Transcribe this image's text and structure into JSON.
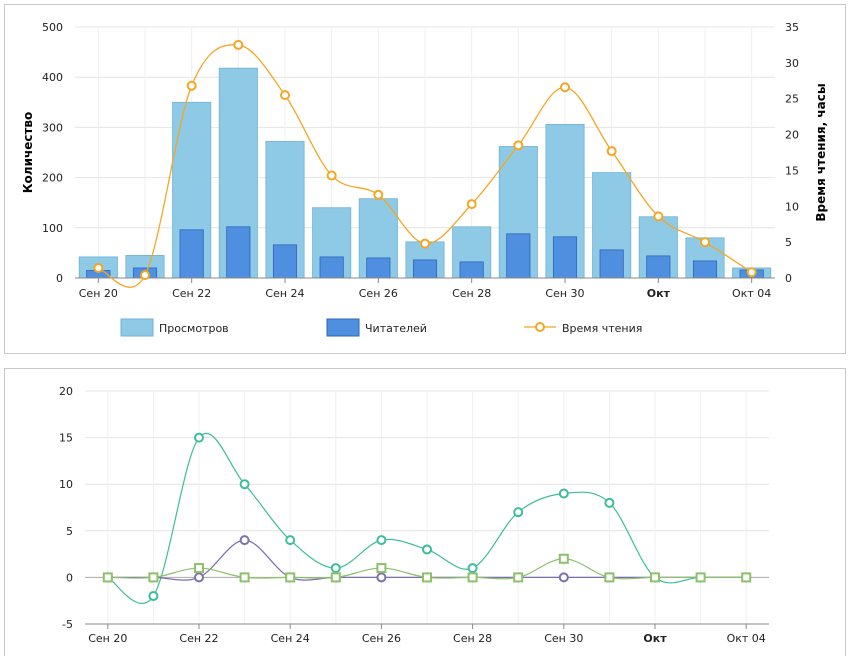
{
  "chart_data": [
    {
      "type": "bar",
      "x_tick_labels": [
        "Сен 20",
        "Сен 22",
        "Сен 24",
        "Сен 26",
        "Сен 28",
        "Сен 30",
        "Окт",
        "Окт 04"
      ],
      "x_tick_bold": [
        false,
        false,
        false,
        false,
        false,
        false,
        true,
        false
      ],
      "ylabel": "Количество",
      "y2label": "Время чтения, часы",
      "ylim": [
        0,
        500
      ],
      "y2lim": [
        0,
        35
      ],
      "yticks": [
        0,
        100,
        200,
        300,
        400,
        500
      ],
      "y2ticks": [
        0,
        5,
        10,
        15,
        20,
        25,
        30,
        35
      ],
      "series": [
        {
          "name": "Просмотров",
          "kind": "bar",
          "axis": "left",
          "color": "#8ecae6",
          "values": [
            42,
            45,
            350,
            418,
            272,
            140,
            158,
            72,
            102,
            262,
            306,
            210,
            122,
            80,
            20
          ]
        },
        {
          "name": "Читателей",
          "kind": "bar",
          "axis": "left",
          "color": "#4f8fe0",
          "values": [
            15,
            20,
            96,
            102,
            66,
            42,
            40,
            36,
            32,
            88,
            82,
            56,
            44,
            34,
            16
          ]
        },
        {
          "name": "Время чтения",
          "kind": "line",
          "axis": "right",
          "color": "#f5a623",
          "values": [
            1.4,
            0.4,
            26.8,
            32.5,
            25.5,
            14.3,
            11.6,
            4.8,
            10.3,
            18.5,
            26.6,
            17.7,
            8.6,
            5.0,
            0.8
          ]
        }
      ],
      "legend_placement": "bottom",
      "grid": true
    },
    {
      "type": "line",
      "x_tick_labels": [
        "Сен 20",
        "Сен 22",
        "Сен 24",
        "Сен 26",
        "Сен 28",
        "Сен 30",
        "Окт",
        "Окт 04"
      ],
      "x_tick_bold": [
        false,
        false,
        false,
        false,
        false,
        false,
        true,
        false
      ],
      "ylim": [
        -5,
        20
      ],
      "yticks": [
        -5,
        0,
        5,
        10,
        15,
        20
      ],
      "series": [
        {
          "color": "#3dbd9a",
          "marker": "circle",
          "values": [
            0,
            -2,
            15,
            10,
            4,
            1,
            4,
            3,
            1,
            7,
            9,
            8,
            0,
            0,
            0
          ]
        },
        {
          "color": "#7b6fb0",
          "marker": "circle",
          "values": [
            0,
            0,
            0,
            4,
            0,
            0,
            0,
            0,
            0,
            0,
            0,
            0,
            0,
            0,
            0
          ]
        },
        {
          "color": "#8cc06a",
          "marker": "square",
          "values": [
            0,
            0,
            1,
            0,
            0,
            0,
            1,
            0,
            0,
            0,
            2,
            0,
            0,
            0,
            0
          ]
        }
      ],
      "grid": true
    }
  ]
}
